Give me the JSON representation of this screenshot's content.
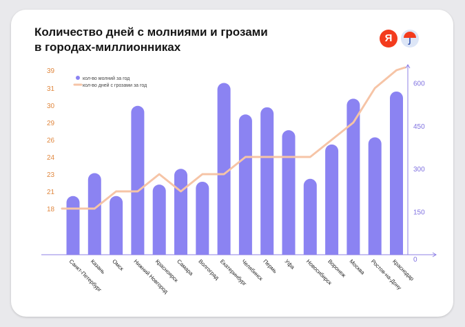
{
  "title": {
    "line1": "Количество дней с молниями и грозами",
    "line2": "в городах-миллионниках"
  },
  "logos": {
    "yandex_letter": "Я"
  },
  "colors": {
    "bars": "#8b83f2",
    "line": "#f6c4a6",
    "left_axis": "#e0873e",
    "right_axis": "#7f71e0",
    "axis_line": "#8c7fe6"
  },
  "chart_data": {
    "type": "bar+line",
    "title": "Количество дней с молниями и грозами в городах-миллионниках",
    "categories": [
      "Санкт-Петербург",
      "Казань",
      "Омск",
      "Нижний Новгород",
      "Красноярск",
      "Самара",
      "Волгоград",
      "Екатеринбург",
      "Челябинск",
      "Пермь",
      "Уфа",
      "Новосибирск",
      "Воронеж",
      "Москва",
      "Ростов-на-Дону",
      "Краснодар"
    ],
    "left_axis": {
      "label": "кол-во дней с грозами за год",
      "ticks": [
        "39",
        "31",
        "30",
        "29",
        "26",
        "24",
        "23",
        "21",
        "18"
      ]
    },
    "right_axis": {
      "label": "кол-во молний за год",
      "ticks": [
        0,
        150,
        300,
        450,
        600
      ],
      "ylim": [
        0,
        630
      ]
    },
    "series": [
      {
        "name": "кол-во молний за год",
        "type": "bar",
        "axis": "right",
        "values": [
          205,
          285,
          205,
          520,
          245,
          300,
          255,
          600,
          490,
          515,
          435,
          265,
          385,
          545,
          410,
          570
        ]
      },
      {
        "name": "кол-во дней с грозами за год",
        "type": "line",
        "axis": "left",
        "values": [
          18,
          18,
          21,
          21,
          23,
          21,
          23,
          23,
          24,
          24,
          24,
          24,
          26,
          29,
          31,
          39
        ]
      }
    ],
    "legend_position": "top-left"
  }
}
